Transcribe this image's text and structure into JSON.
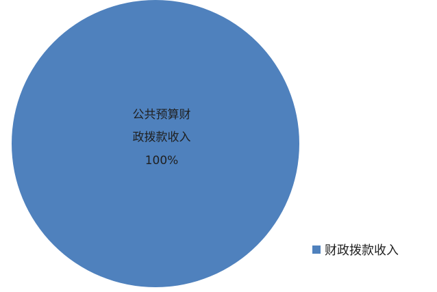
{
  "chart_data": {
    "type": "pie",
    "categories": [
      "财政拨款收入"
    ],
    "values": [
      100
    ],
    "slice_labels": [
      {
        "lines": [
          "公共预算财",
          "政拨款收入",
          "100%"
        ]
      }
    ],
    "legend": {
      "position": "right-bottom",
      "entries": [
        "财政拨款收入"
      ]
    },
    "colors": [
      "#4F81BD"
    ],
    "title": ""
  }
}
